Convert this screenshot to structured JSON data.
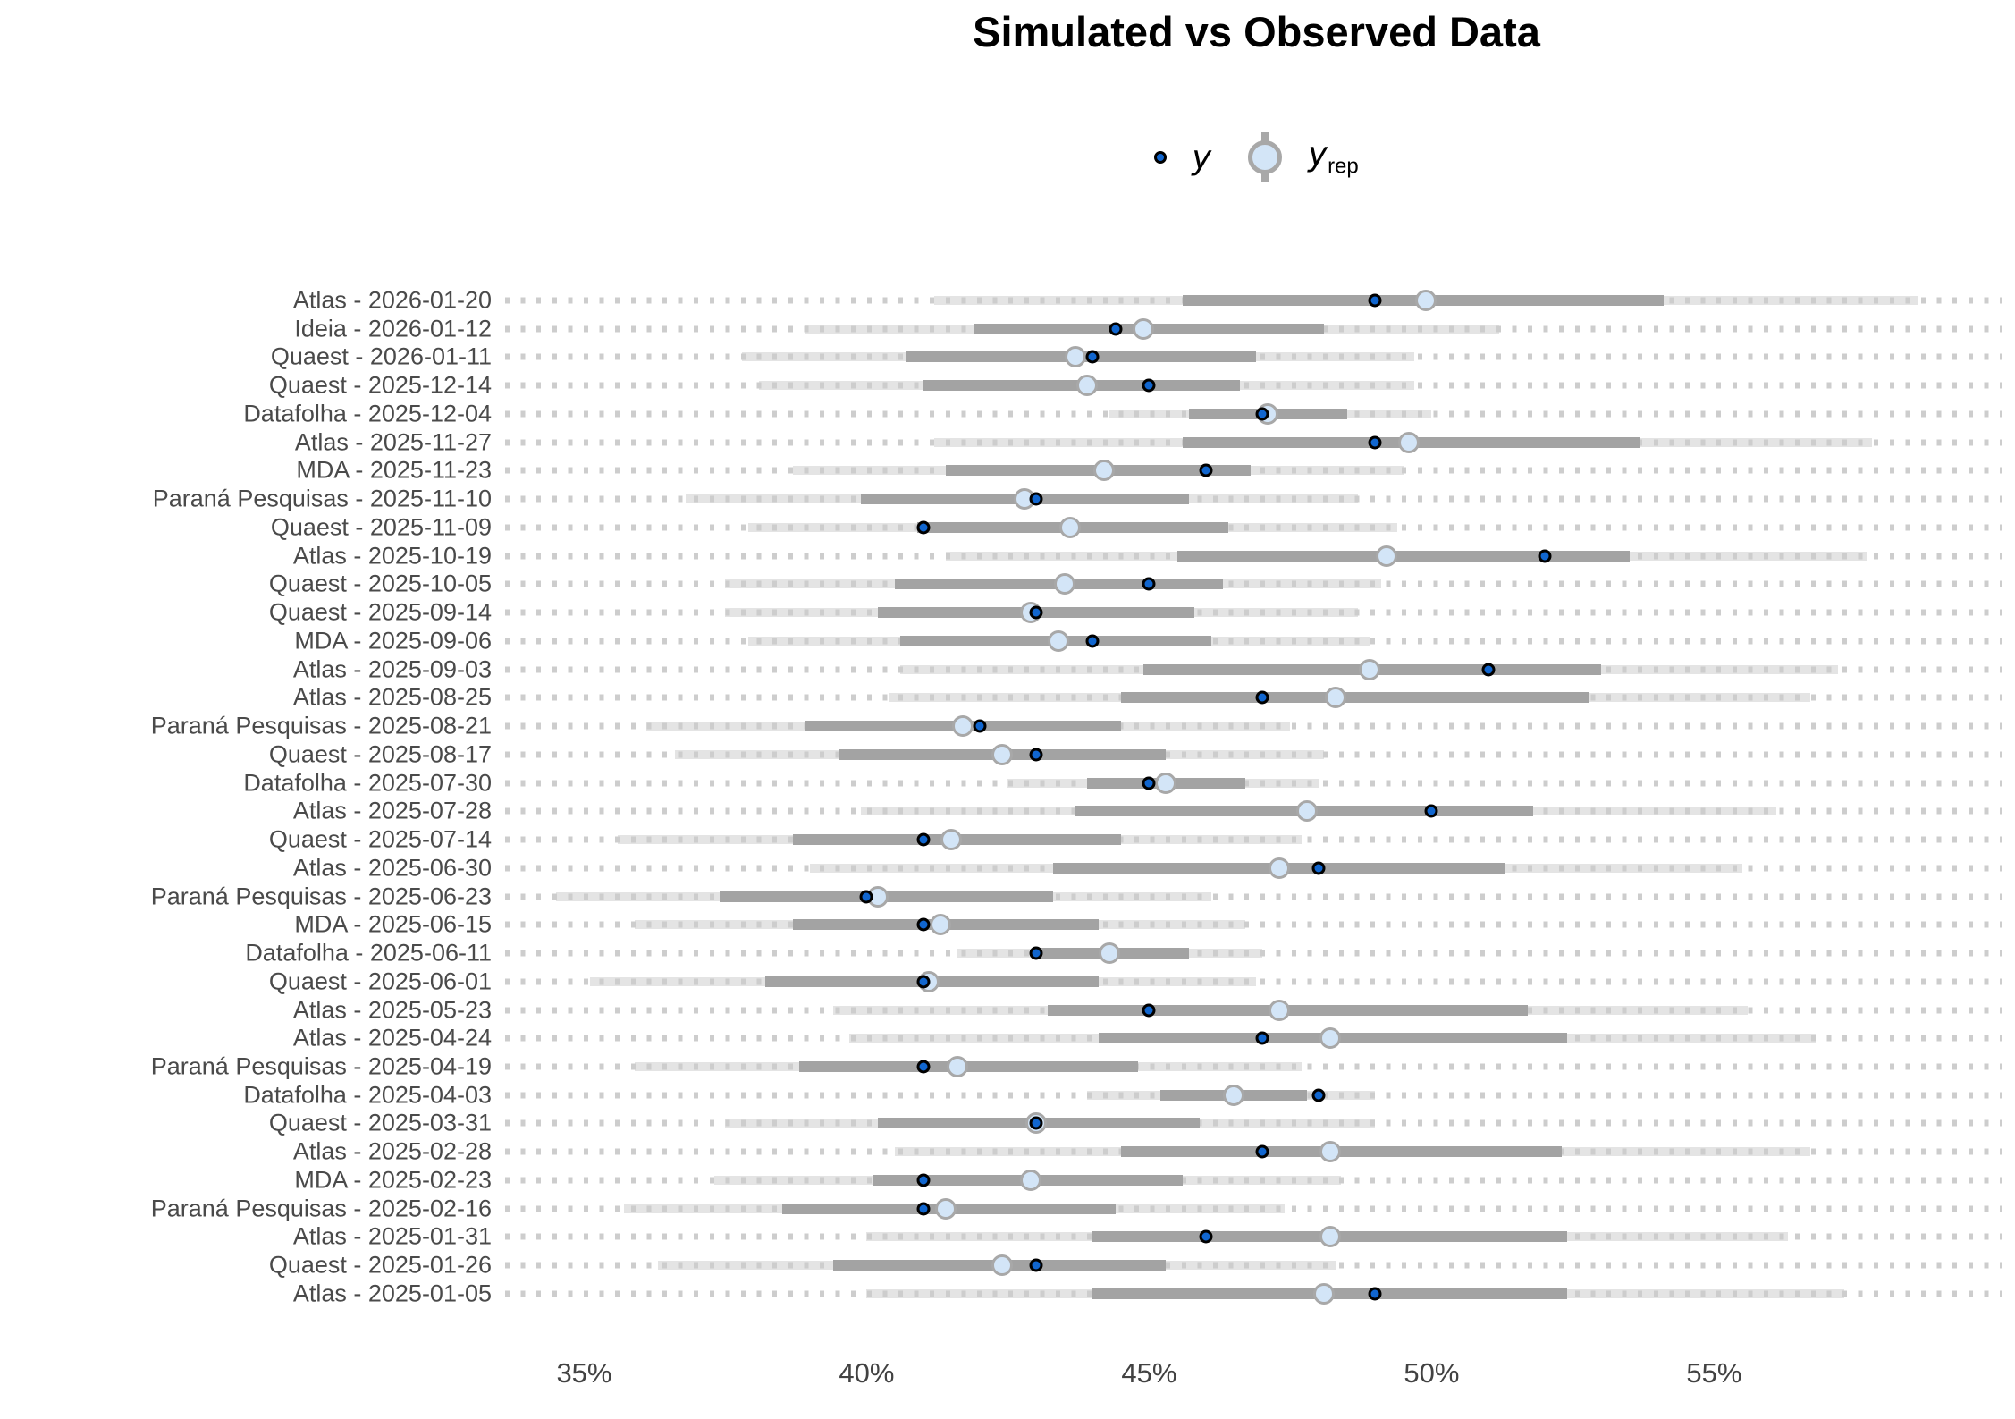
{
  "title": "Simulated vs Observed Data",
  "legend": {
    "y_label": "y",
    "yrep_label": "y",
    "yrep_sub": "rep"
  },
  "colors": {
    "title": "#000000",
    "axis_label": "#4a4a4a",
    "grid_dot": "#cdcdcd",
    "outer_band": "#e4e4e4",
    "inner_bar": "#a3a3a3",
    "yrep_fill": "#d3e5f7",
    "yrep_stroke": "#a8a8a8",
    "y_fill": "#1166cf",
    "y_stroke": "#000000"
  },
  "chart_data": {
    "type": "scatter",
    "subtype": "ppc-intervals",
    "title": "Simulated vs Observed Data",
    "x_unit": "%",
    "xlim": [
      33.6,
      60.2
    ],
    "grid": "dotted-horizontal",
    "legend_position": "top-center",
    "xticks": [
      {
        "value": 35,
        "label": "35%"
      },
      {
        "value": 40,
        "label": "40%"
      },
      {
        "value": 45,
        "label": "45%"
      },
      {
        "value": 50,
        "label": "50%"
      },
      {
        "value": 55,
        "label": "55%"
      }
    ],
    "series_meaning": {
      "y": "observed poll value (dark blue dot)",
      "yrep": "posterior predictive median (light blue circle)",
      "inner": "inner predictive interval (dark gray bar)",
      "outer": "outer predictive interval (light gray band)"
    },
    "rows": [
      {
        "label": "Atlas - 2026-01-20",
        "outer": [
          41.2,
          58.6
        ],
        "inner": [
          45.6,
          54.1
        ],
        "yrep": 49.9,
        "y": 49.0
      },
      {
        "label": "Ideia - 2026-01-12",
        "outer": [
          38.9,
          51.2
        ],
        "inner": [
          41.9,
          48.1
        ],
        "yrep": 44.9,
        "y": 44.4
      },
      {
        "label": "Quaest - 2026-01-11",
        "outer": [
          37.8,
          49.7
        ],
        "inner": [
          40.7,
          46.9
        ],
        "yrep": 43.7,
        "y": 44.0
      },
      {
        "label": "Quaest - 2025-12-14",
        "outer": [
          38.1,
          49.7
        ],
        "inner": [
          41.0,
          46.6
        ],
        "yrep": 43.9,
        "y": 45.0
      },
      {
        "label": "Datafolha - 2025-12-04",
        "outer": [
          44.3,
          50.0
        ],
        "inner": [
          45.7,
          48.5
        ],
        "yrep": 47.1,
        "y": 47.0
      },
      {
        "label": "Atlas - 2025-11-27",
        "outer": [
          41.2,
          57.8
        ],
        "inner": [
          45.6,
          53.7
        ],
        "yrep": 49.6,
        "y": 49.0
      },
      {
        "label": "MDA - 2025-11-23",
        "outer": [
          38.7,
          49.5
        ],
        "inner": [
          41.4,
          46.8
        ],
        "yrep": 44.2,
        "y": 46.0
      },
      {
        "label": "Paraná Pesquisas - 2025-11-10",
        "outer": [
          36.8,
          48.7
        ],
        "inner": [
          39.9,
          45.7
        ],
        "yrep": 42.8,
        "y": 43.0
      },
      {
        "label": "Quaest - 2025-11-09",
        "outer": [
          37.9,
          49.4
        ],
        "inner": [
          40.9,
          46.4
        ],
        "yrep": 43.6,
        "y": 41.0
      },
      {
        "label": "Atlas - 2025-10-19",
        "outer": [
          41.4,
          57.7
        ],
        "inner": [
          45.5,
          53.5
        ],
        "yrep": 49.2,
        "y": 52.0
      },
      {
        "label": "Quaest - 2025-10-05",
        "outer": [
          37.5,
          49.1
        ],
        "inner": [
          40.5,
          46.3
        ],
        "yrep": 43.5,
        "y": 45.0
      },
      {
        "label": "Quaest - 2025-09-14",
        "outer": [
          37.5,
          48.7
        ],
        "inner": [
          40.2,
          45.8
        ],
        "yrep": 42.9,
        "y": 43.0
      },
      {
        "label": "MDA - 2025-09-06",
        "outer": [
          37.9,
          48.9
        ],
        "inner": [
          40.6,
          46.1
        ],
        "yrep": 43.4,
        "y": 44.0
      },
      {
        "label": "Atlas - 2025-09-03",
        "outer": [
          40.6,
          57.2
        ],
        "inner": [
          44.9,
          53.0
        ],
        "yrep": 48.9,
        "y": 51.0
      },
      {
        "label": "Atlas - 2025-08-25",
        "outer": [
          40.4,
          56.7
        ],
        "inner": [
          44.5,
          52.8
        ],
        "yrep": 48.3,
        "y": 47.0
      },
      {
        "label": "Paraná Pesquisas - 2025-08-21",
        "outer": [
          36.1,
          47.5
        ],
        "inner": [
          38.9,
          44.5
        ],
        "yrep": 41.7,
        "y": 42.0
      },
      {
        "label": "Quaest - 2025-08-17",
        "outer": [
          36.6,
          48.1
        ],
        "inner": [
          39.5,
          45.3
        ],
        "yrep": 42.4,
        "y": 43.0
      },
      {
        "label": "Datafolha - 2025-07-30",
        "outer": [
          42.5,
          48.0
        ],
        "inner": [
          43.9,
          46.7
        ],
        "yrep": 45.3,
        "y": 45.0
      },
      {
        "label": "Atlas - 2025-07-28",
        "outer": [
          39.9,
          56.1
        ],
        "inner": [
          43.7,
          51.8
        ],
        "yrep": 47.8,
        "y": 50.0
      },
      {
        "label": "Quaest - 2025-07-14",
        "outer": [
          35.6,
          47.7
        ],
        "inner": [
          38.7,
          44.5
        ],
        "yrep": 41.5,
        "y": 41.0
      },
      {
        "label": "Atlas - 2025-06-30",
        "outer": [
          39.0,
          55.5
        ],
        "inner": [
          43.3,
          51.3
        ],
        "yrep": 47.3,
        "y": 48.0
      },
      {
        "label": "Paraná Pesquisas - 2025-06-23",
        "outer": [
          34.5,
          46.1
        ],
        "inner": [
          37.4,
          43.3
        ],
        "yrep": 40.2,
        "y": 40.0
      },
      {
        "label": "MDA - 2025-06-15",
        "outer": [
          35.9,
          46.7
        ],
        "inner": [
          38.7,
          44.1
        ],
        "yrep": 41.3,
        "y": 41.0
      },
      {
        "label": "Datafolha - 2025-06-11",
        "outer": [
          41.6,
          47.0
        ],
        "inner": [
          43.0,
          45.7
        ],
        "yrep": 44.3,
        "y": 43.0
      },
      {
        "label": "Quaest - 2025-06-01",
        "outer": [
          35.1,
          46.9
        ],
        "inner": [
          38.2,
          44.1
        ],
        "yrep": 41.1,
        "y": 41.0
      },
      {
        "label": "Atlas - 2025-05-23",
        "outer": [
          39.4,
          55.6
        ],
        "inner": [
          43.2,
          51.7
        ],
        "yrep": 47.3,
        "y": 45.0
      },
      {
        "label": "Atlas - 2025-04-24",
        "outer": [
          39.7,
          56.8
        ],
        "inner": [
          44.1,
          52.4
        ],
        "yrep": 48.2,
        "y": 47.0
      },
      {
        "label": "Paraná Pesquisas - 2025-04-19",
        "outer": [
          35.9,
          47.7
        ],
        "inner": [
          38.8,
          44.8
        ],
        "yrep": 41.6,
        "y": 41.0
      },
      {
        "label": "Datafolha - 2025-04-03",
        "outer": [
          43.9,
          49.0
        ],
        "inner": [
          45.2,
          47.8
        ],
        "yrep": 46.5,
        "y": 48.0
      },
      {
        "label": "Quaest - 2025-03-31",
        "outer": [
          37.5,
          49.0
        ],
        "inner": [
          40.2,
          45.9
        ],
        "yrep": 43.0,
        "y": 43.0
      },
      {
        "label": "Atlas - 2025-02-28",
        "outer": [
          40.5,
          56.7
        ],
        "inner": [
          44.5,
          52.3
        ],
        "yrep": 48.2,
        "y": 47.0
      },
      {
        "label": "MDA - 2025-02-23",
        "outer": [
          37.3,
          48.4
        ],
        "inner": [
          40.1,
          45.6
        ],
        "yrep": 42.9,
        "y": 41.0
      },
      {
        "label": "Paraná Pesquisas - 2025-02-16",
        "outer": [
          35.7,
          47.4
        ],
        "inner": [
          38.5,
          44.4
        ],
        "yrep": 41.4,
        "y": 41.0
      },
      {
        "label": "Atlas - 2025-01-31",
        "outer": [
          40.0,
          56.3
        ],
        "inner": [
          44.0,
          52.4
        ],
        "yrep": 48.2,
        "y": 46.0
      },
      {
        "label": "Quaest - 2025-01-26",
        "outer": [
          36.3,
          48.3
        ],
        "inner": [
          39.4,
          45.3
        ],
        "yrep": 42.4,
        "y": 43.0
      },
      {
        "label": "Atlas - 2025-01-05",
        "outer": [
          40.0,
          57.3
        ],
        "inner": [
          44.0,
          52.4
        ],
        "yrep": 48.1,
        "y": 49.0
      }
    ]
  }
}
